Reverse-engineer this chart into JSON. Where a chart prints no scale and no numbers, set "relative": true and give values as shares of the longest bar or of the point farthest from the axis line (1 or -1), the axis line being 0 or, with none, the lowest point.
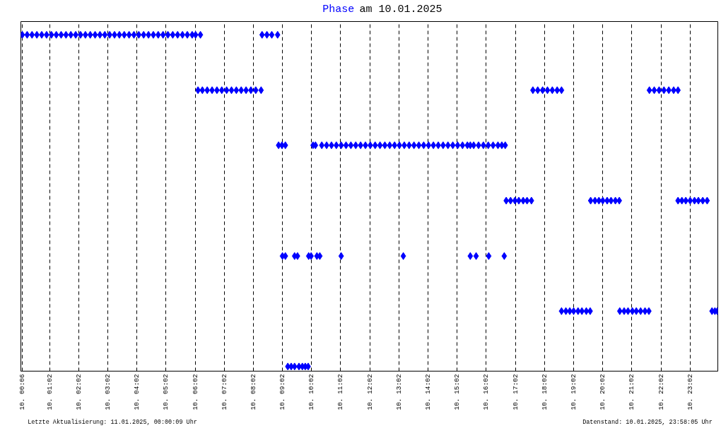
{
  "chart_data": {
    "type": "scatter",
    "title": "Phase am 10.01.2025",
    "relative": true,
    "marker": "diamond",
    "color": "#0000ff",
    "grid": "x",
    "xlim": [
      "2025-01-10T00:03",
      "2025-01-10T23:59"
    ],
    "xticks": [
      {
        "value": "2025-01-10T00:06",
        "label": "10. 00:06"
      },
      {
        "value": "2025-01-10T01:02",
        "label": "10. 01:02"
      },
      {
        "value": "2025-01-10T02:02",
        "label": "10. 02:02"
      },
      {
        "value": "2025-01-10T03:02",
        "label": "10. 03:02"
      },
      {
        "value": "2025-01-10T04:02",
        "label": "10. 04:02"
      },
      {
        "value": "2025-01-10T05:02",
        "label": "10. 05:02"
      },
      {
        "value": "2025-01-10T06:02",
        "label": "10. 06:02"
      },
      {
        "value": "2025-01-10T07:02",
        "label": "10. 07:02"
      },
      {
        "value": "2025-01-10T08:02",
        "label": "10. 08:02"
      },
      {
        "value": "2025-01-10T09:02",
        "label": "10. 09:02"
      },
      {
        "value": "2025-01-10T10:02",
        "label": "10. 10:02"
      },
      {
        "value": "2025-01-10T11:02",
        "label": "10. 11:02"
      },
      {
        "value": "2025-01-10T12:02",
        "label": "10. 12:02"
      },
      {
        "value": "2025-01-10T13:02",
        "label": "10. 13:02"
      },
      {
        "value": "2025-01-10T14:02",
        "label": "10. 14:02"
      },
      {
        "value": "2025-01-10T15:02",
        "label": "10. 15:02"
      },
      {
        "value": "2025-01-10T16:02",
        "label": "10. 16:02"
      },
      {
        "value": "2025-01-10T17:02",
        "label": "10. 17:02"
      },
      {
        "value": "2025-01-10T18:02",
        "label": "10. 18:02"
      },
      {
        "value": "2025-01-10T19:02",
        "label": "10. 19:02"
      },
      {
        "value": "2025-01-10T20:02",
        "label": "10. 20:02"
      },
      {
        "value": "2025-01-10T21:02",
        "label": "10. 21:02"
      },
      {
        "value": "2025-01-10T22:02",
        "label": "10. 22:02"
      },
      {
        "value": "2025-01-10T23:02",
        "label": "10. 23:02"
      }
    ],
    "x": [
      "2025-01-10T00:06",
      "2025-01-10T00:16",
      "2025-01-10T00:26",
      "2025-01-10T00:36",
      "2025-01-10T00:46",
      "2025-01-10T00:56",
      "2025-01-10T01:06",
      "2025-01-10T01:16",
      "2025-01-10T01:26",
      "2025-01-10T01:36",
      "2025-01-10T01:46",
      "2025-01-10T01:56",
      "2025-01-10T02:06",
      "2025-01-10T02:16",
      "2025-01-10T02:26",
      "2025-01-10T02:36",
      "2025-01-10T02:46",
      "2025-01-10T02:56",
      "2025-01-10T03:06",
      "2025-01-10T03:16",
      "2025-01-10T03:26",
      "2025-01-10T03:36",
      "2025-01-10T03:46",
      "2025-01-10T03:56",
      "2025-01-10T04:06",
      "2025-01-10T04:16",
      "2025-01-10T04:26",
      "2025-01-10T04:36",
      "2025-01-10T04:46",
      "2025-01-10T04:56",
      "2025-01-10T05:06",
      "2025-01-10T05:16",
      "2025-01-10T05:26",
      "2025-01-10T05:36",
      "2025-01-10T05:46",
      "2025-01-10T05:56",
      "2025-01-10T06:03",
      "2025-01-10T06:13",
      "2025-01-10T08:20",
      "2025-01-10T08:30",
      "2025-01-10T08:40",
      "2025-01-10T08:52",
      "2025-01-10T06:08",
      "2025-01-10T06:17",
      "2025-01-10T06:27",
      "2025-01-10T06:37",
      "2025-01-10T06:47",
      "2025-01-10T06:57",
      "2025-01-10T07:07",
      "2025-01-10T07:17",
      "2025-01-10T07:27",
      "2025-01-10T07:37",
      "2025-01-10T07:47",
      "2025-01-10T07:57",
      "2025-01-10T08:07",
      "2025-01-10T08:18",
      "2025-01-10T17:38",
      "2025-01-10T17:48",
      "2025-01-10T17:58",
      "2025-01-10T18:08",
      "2025-01-10T18:18",
      "2025-01-10T18:28",
      "2025-01-10T18:37",
      "2025-01-10T21:38",
      "2025-01-10T21:48",
      "2025-01-10T21:58",
      "2025-01-10T22:08",
      "2025-01-10T22:18",
      "2025-01-10T22:28",
      "2025-01-10T22:37",
      "2025-01-10T08:54",
      "2025-01-10T09:01",
      "2025-01-10T09:08",
      "2025-01-10T10:05",
      "2025-01-10T10:10",
      "2025-01-10T10:23",
      "2025-01-10T10:33",
      "2025-01-10T10:43",
      "2025-01-10T10:53",
      "2025-01-10T11:03",
      "2025-01-10T11:13",
      "2025-01-10T11:23",
      "2025-01-10T11:33",
      "2025-01-10T11:43",
      "2025-01-10T11:53",
      "2025-01-10T12:03",
      "2025-01-10T12:13",
      "2025-01-10T12:23",
      "2025-01-10T12:33",
      "2025-01-10T12:43",
      "2025-01-10T12:53",
      "2025-01-10T13:03",
      "2025-01-10T13:13",
      "2025-01-10T13:23",
      "2025-01-10T13:33",
      "2025-01-10T13:43",
      "2025-01-10T13:53",
      "2025-01-10T14:03",
      "2025-01-10T14:13",
      "2025-01-10T14:23",
      "2025-01-10T14:33",
      "2025-01-10T14:43",
      "2025-01-10T14:53",
      "2025-01-10T15:03",
      "2025-01-10T15:13",
      "2025-01-10T15:23",
      "2025-01-10T15:29",
      "2025-01-10T15:36",
      "2025-01-10T15:46",
      "2025-01-10T15:56",
      "2025-01-10T16:06",
      "2025-01-10T16:16",
      "2025-01-10T16:26",
      "2025-01-10T16:34",
      "2025-01-10T16:41",
      "2025-01-10T16:43",
      "2025-01-10T16:52",
      "2025-01-10T17:01",
      "2025-01-10T17:09",
      "2025-01-10T17:18",
      "2025-01-10T17:26",
      "2025-01-10T17:35",
      "2025-01-10T19:37",
      "2025-01-10T19:46",
      "2025-01-10T19:54",
      "2025-01-10T20:02",
      "2025-01-10T20:11",
      "2025-01-10T20:19",
      "2025-01-10T20:28",
      "2025-01-10T20:36",
      "2025-01-10T22:37",
      "2025-01-10T22:45",
      "2025-01-10T22:53",
      "2025-01-10T23:02",
      "2025-01-10T23:11",
      "2025-01-10T23:19",
      "2025-01-10T23:28",
      "2025-01-10T23:37",
      "2025-01-10T09:02",
      "2025-01-10T09:08",
      "2025-01-10T09:27",
      "2025-01-10T09:33",
      "2025-01-10T09:56",
      "2025-01-10T10:01",
      "2025-01-10T10:13",
      "2025-01-10T10:19",
      "2025-01-10T11:03",
      "2025-01-10T13:11",
      "2025-01-10T15:29",
      "2025-01-10T15:41",
      "2025-01-10T16:07",
      "2025-01-10T16:39",
      "2025-01-10T18:37",
      "2025-01-10T18:46",
      "2025-01-10T18:54",
      "2025-01-10T19:02",
      "2025-01-10T19:11",
      "2025-01-10T19:19",
      "2025-01-10T19:28",
      "2025-01-10T19:36",
      "2025-01-10T20:37",
      "2025-01-10T20:46",
      "2025-01-10T20:54",
      "2025-01-10T21:03",
      "2025-01-10T21:11",
      "2025-01-10T21:20",
      "2025-01-10T21:29",
      "2025-01-10T21:37",
      "2025-01-10T23:47",
      "2025-01-10T23:53",
      "2025-01-10T23:58",
      "2025-01-10T09:13",
      "2025-01-10T09:20",
      "2025-01-10T09:27",
      "2025-01-10T09:36",
      "2025-01-10T09:43",
      "2025-01-10T09:49",
      "2025-01-10T09:55"
    ],
    "values": [
      1,
      1,
      1,
      1,
      1,
      1,
      1,
      1,
      1,
      1,
      1,
      1,
      1,
      1,
      1,
      1,
      1,
      1,
      1,
      1,
      1,
      1,
      1,
      1,
      1,
      1,
      1,
      1,
      1,
      1,
      1,
      1,
      1,
      1,
      1,
      1,
      1,
      1,
      1,
      1,
      1,
      1,
      0.833,
      0.833,
      0.833,
      0.833,
      0.833,
      0.833,
      0.833,
      0.833,
      0.833,
      0.833,
      0.833,
      0.833,
      0.833,
      0.833,
      0.833,
      0.833,
      0.833,
      0.833,
      0.833,
      0.833,
      0.833,
      0.833,
      0.833,
      0.833,
      0.833,
      0.833,
      0.833,
      0.833,
      0.667,
      0.667,
      0.667,
      0.667,
      0.667,
      0.667,
      0.667,
      0.667,
      0.667,
      0.667,
      0.667,
      0.667,
      0.667,
      0.667,
      0.667,
      0.667,
      0.667,
      0.667,
      0.667,
      0.667,
      0.667,
      0.667,
      0.667,
      0.667,
      0.667,
      0.667,
      0.667,
      0.667,
      0.667,
      0.667,
      0.667,
      0.667,
      0.667,
      0.667,
      0.667,
      0.667,
      0.667,
      0.667,
      0.667,
      0.667,
      0.667,
      0.667,
      0.667,
      0.667,
      0.667,
      0.5,
      0.5,
      0.5,
      0.5,
      0.5,
      0.5,
      0.5,
      0.5,
      0.5,
      0.5,
      0.5,
      0.5,
      0.5,
      0.5,
      0.5,
      0.5,
      0.5,
      0.5,
      0.5,
      0.5,
      0.5,
      0.5,
      0.5,
      0.333,
      0.333,
      0.333,
      0.333,
      0.333,
      0.333,
      0.333,
      0.333,
      0.333,
      0.333,
      0.333,
      0.333,
      0.333,
      0.333,
      0.167,
      0.167,
      0.167,
      0.167,
      0.167,
      0.167,
      0.167,
      0.167,
      0.167,
      0.167,
      0.167,
      0.167,
      0.167,
      0.167,
      0.167,
      0.167,
      0.167,
      0.167,
      0.167,
      0,
      0,
      0,
      0,
      0,
      0,
      0
    ],
    "annotations": [
      "Letzte Aktualisierung: 11.01.2025, 00:00:09 Uhr",
      "Datenstand: 10.01.2025, 23:58:05 Uhr"
    ]
  }
}
